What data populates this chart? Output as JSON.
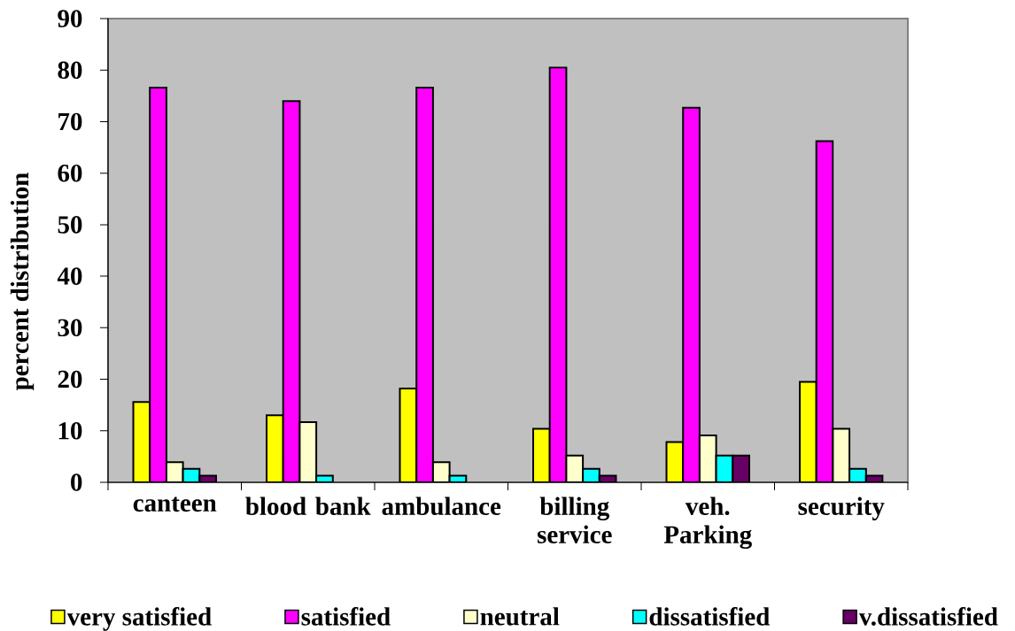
{
  "chart_data": {
    "type": "bar",
    "ylabel": "percent distribution",
    "categories": [
      "canteen",
      "blood bank",
      "ambulance",
      "billing service",
      "veh. Parking",
      "security"
    ],
    "series": [
      {
        "name": "very satisfied",
        "color": "#ffff00",
        "values": [
          15.6,
          13.0,
          18.2,
          10.4,
          7.8,
          19.5
        ]
      },
      {
        "name": "satisfied",
        "color": "#ff00ff",
        "values": [
          76.6,
          74.0,
          76.6,
          80.5,
          72.7,
          66.2
        ]
      },
      {
        "name": "neutral",
        "color": "#ffffcc",
        "values": [
          3.9,
          11.7,
          3.9,
          5.2,
          9.1,
          10.4
        ]
      },
      {
        "name": "dissatisfied",
        "color": "#00ffff",
        "values": [
          2.6,
          1.3,
          1.3,
          2.6,
          5.2,
          2.6
        ]
      },
      {
        "name": "v.dissatisfied",
        "color": "#660066",
        "values": [
          1.3,
          null,
          null,
          1.3,
          5.2,
          1.3
        ]
      }
    ],
    "ylim": [
      0,
      90
    ],
    "yticks": [
      0,
      10,
      20,
      30,
      40,
      50,
      60,
      70,
      80,
      90
    ],
    "legend": "bottom"
  }
}
